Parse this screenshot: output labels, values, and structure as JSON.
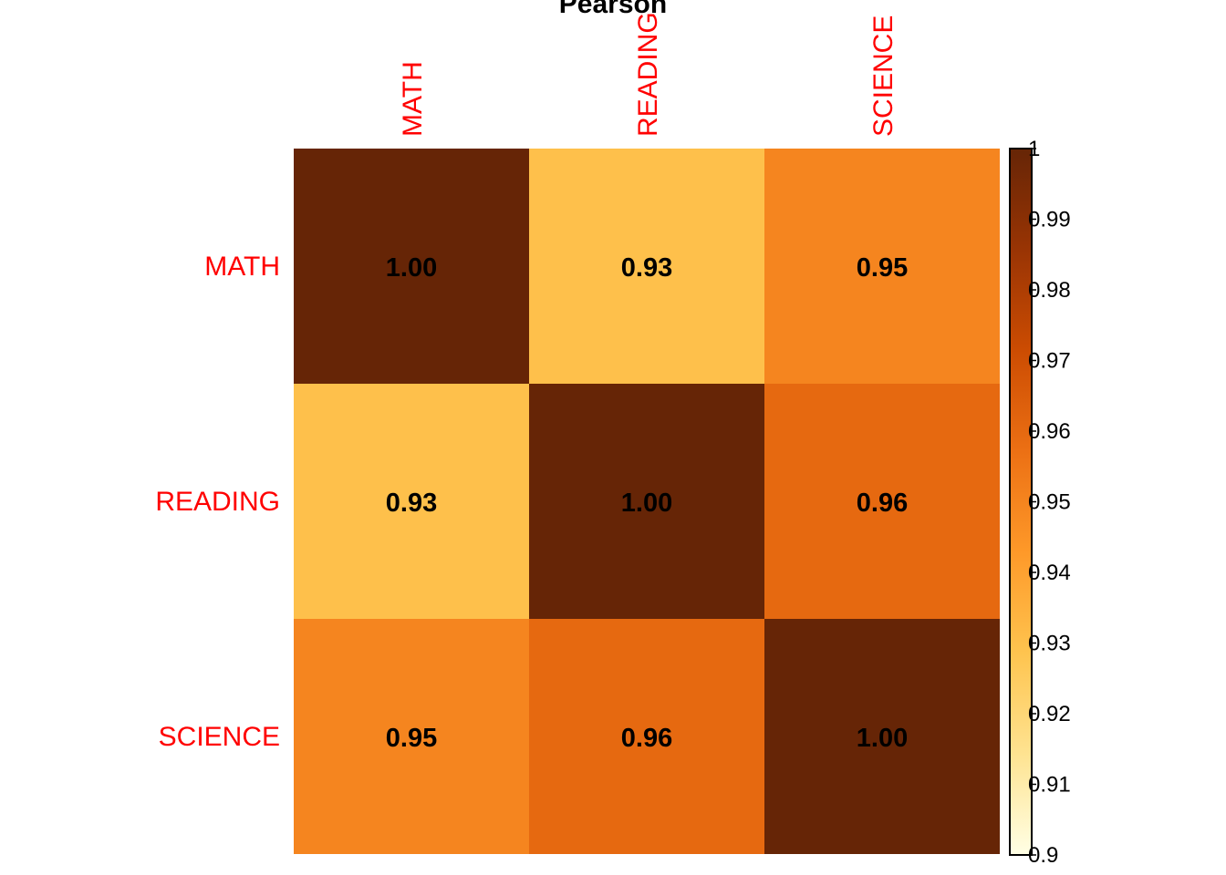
{
  "chart_data": {
    "type": "heatmap",
    "title": "Pearson",
    "rows": [
      "MATH",
      "READING",
      "SCIENCE"
    ],
    "columns": [
      "MATH",
      "READING",
      "SCIENCE"
    ],
    "values": [
      [
        1.0,
        0.93,
        0.95
      ],
      [
        0.93,
        1.0,
        0.96
      ],
      [
        0.95,
        0.96,
        1.0
      ]
    ],
    "cell_labels": [
      [
        "1.00",
        "0.93",
        "0.95"
      ],
      [
        "0.93",
        "1.00",
        "0.96"
      ],
      [
        "0.95",
        "0.96",
        "1.00"
      ]
    ],
    "color_scale": {
      "range": [
        0.9,
        1
      ],
      "stops": [
        "#ffffe5",
        "#fee391",
        "#fec44f",
        "#fe9929",
        "#ec7014",
        "#cc4c02",
        "#993404",
        "#662506"
      ],
      "ticks": [
        "0.9",
        "0.91",
        "0.92",
        "0.93",
        "0.94",
        "0.95",
        "0.96",
        "0.97",
        "0.98",
        "0.99",
        "1"
      ]
    },
    "label_color": "#ff0000",
    "legend_placement": "right",
    "grid": false
  }
}
